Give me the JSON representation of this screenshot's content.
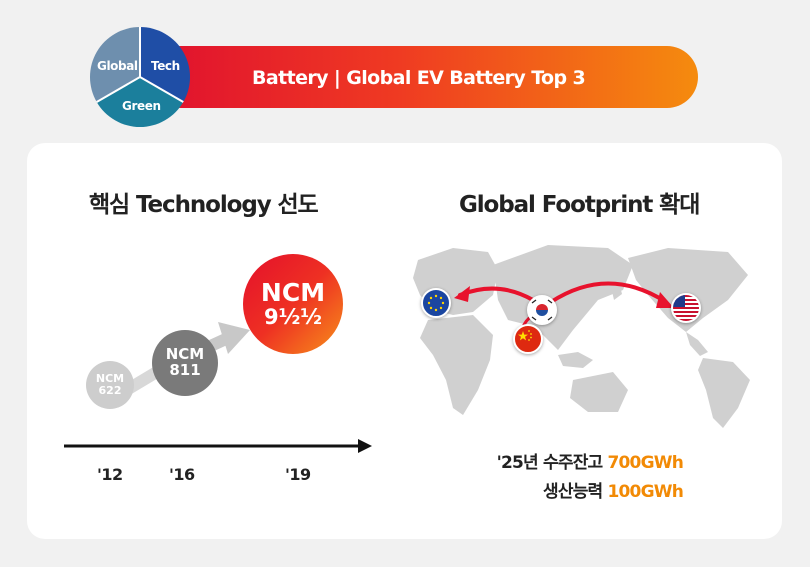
{
  "banner": {
    "title": "Battery | Global EV Battery Top 3"
  },
  "pie": {
    "segments": [
      "Global",
      "Tech",
      "Green"
    ],
    "colors": [
      "#6e8fae",
      "#1f4ea6",
      "#1b7f9c"
    ]
  },
  "technology": {
    "heading": "핵심 Technology 선도",
    "circles": [
      {
        "line1": "NCM",
        "line2": "622"
      },
      {
        "line1": "NCM",
        "line2": "811"
      },
      {
        "line1": "NCM",
        "line2": "9½½"
      }
    ],
    "years": [
      "'12",
      "'16",
      "'19"
    ]
  },
  "footprint": {
    "heading": "Global Footprint 확대",
    "flags": [
      "eu-flag-icon",
      "korea-flag-icon",
      "china-flag-icon",
      "usa-flag-icon"
    ],
    "stats": [
      {
        "label": "'25년 수주잔고 ",
        "value": "700GWh"
      },
      {
        "label": "생산능력 ",
        "value": "100GWh"
      }
    ]
  },
  "colors": {
    "accent_red": "#e4102b",
    "accent_orange": "#f28a05"
  }
}
